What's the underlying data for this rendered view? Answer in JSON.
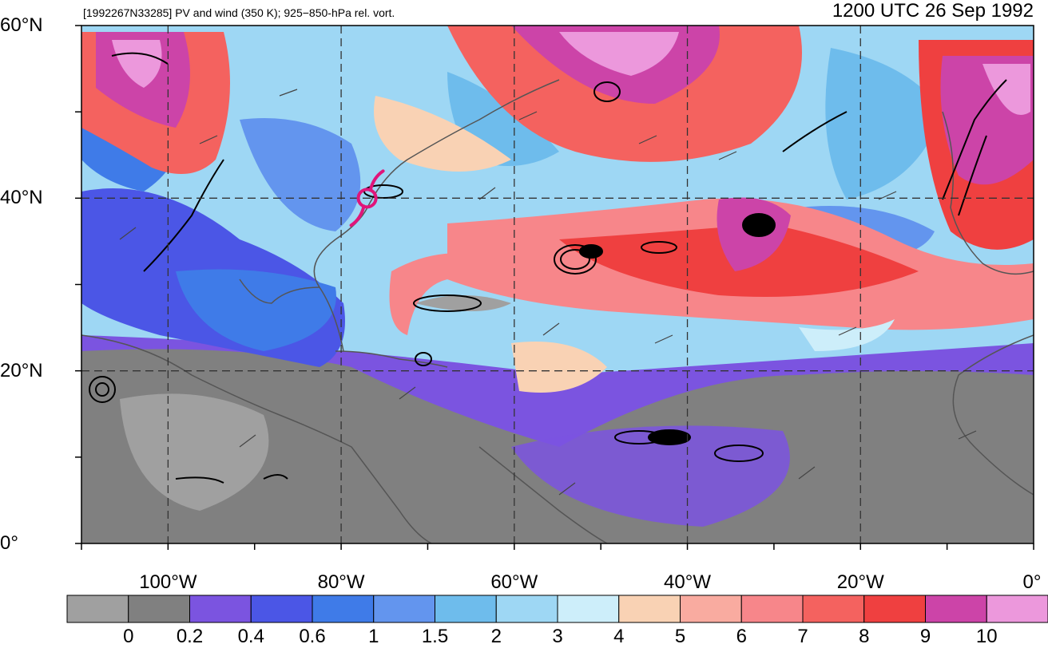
{
  "header": {
    "left_title": "[1992267N33285] PV and wind (350 K); 925−850-hPa rel. vort.",
    "right_title": "1200 UTC 26 Sep 1992"
  },
  "map": {
    "lon_range": [
      -110,
      0
    ],
    "lat_range": [
      0,
      60
    ],
    "lat_labels": [
      {
        "lat": 60,
        "text": "60°N"
      },
      {
        "lat": 40,
        "text": "40°N"
      },
      {
        "lat": 20,
        "text": "20°N"
      },
      {
        "lat": 0,
        "text": "0°"
      }
    ],
    "lon_labels": [
      {
        "lon": -100,
        "text": "100°W"
      },
      {
        "lon": -80,
        "text": "80°W"
      },
      {
        "lon": -60,
        "text": "60°W"
      },
      {
        "lon": -40,
        "text": "40°W"
      },
      {
        "lon": -20,
        "text": "20°W"
      },
      {
        "lon": 0,
        "text": "0°"
      }
    ],
    "storm_symbol_location": {
      "lon": -77,
      "lat": 40
    }
  },
  "colorbar": {
    "colors": [
      "#a0a0a0",
      "#808080",
      "#7b54e0",
      "#4b56e6",
      "#3f7be8",
      "#6395ee",
      "#6ebcec",
      "#9ed7f4",
      "#cdeefa",
      "#f9d2b4",
      "#f9aba0",
      "#f7868a",
      "#f4625f",
      "#ef4040",
      "#cc44a8",
      "#ec98dc"
    ],
    "tick_labels": [
      "0",
      "0.2",
      "0.4",
      "0.6",
      "1",
      "1.5",
      "2",
      "3",
      "4",
      "5",
      "6",
      "7",
      "8",
      "9",
      "10"
    ]
  }
}
